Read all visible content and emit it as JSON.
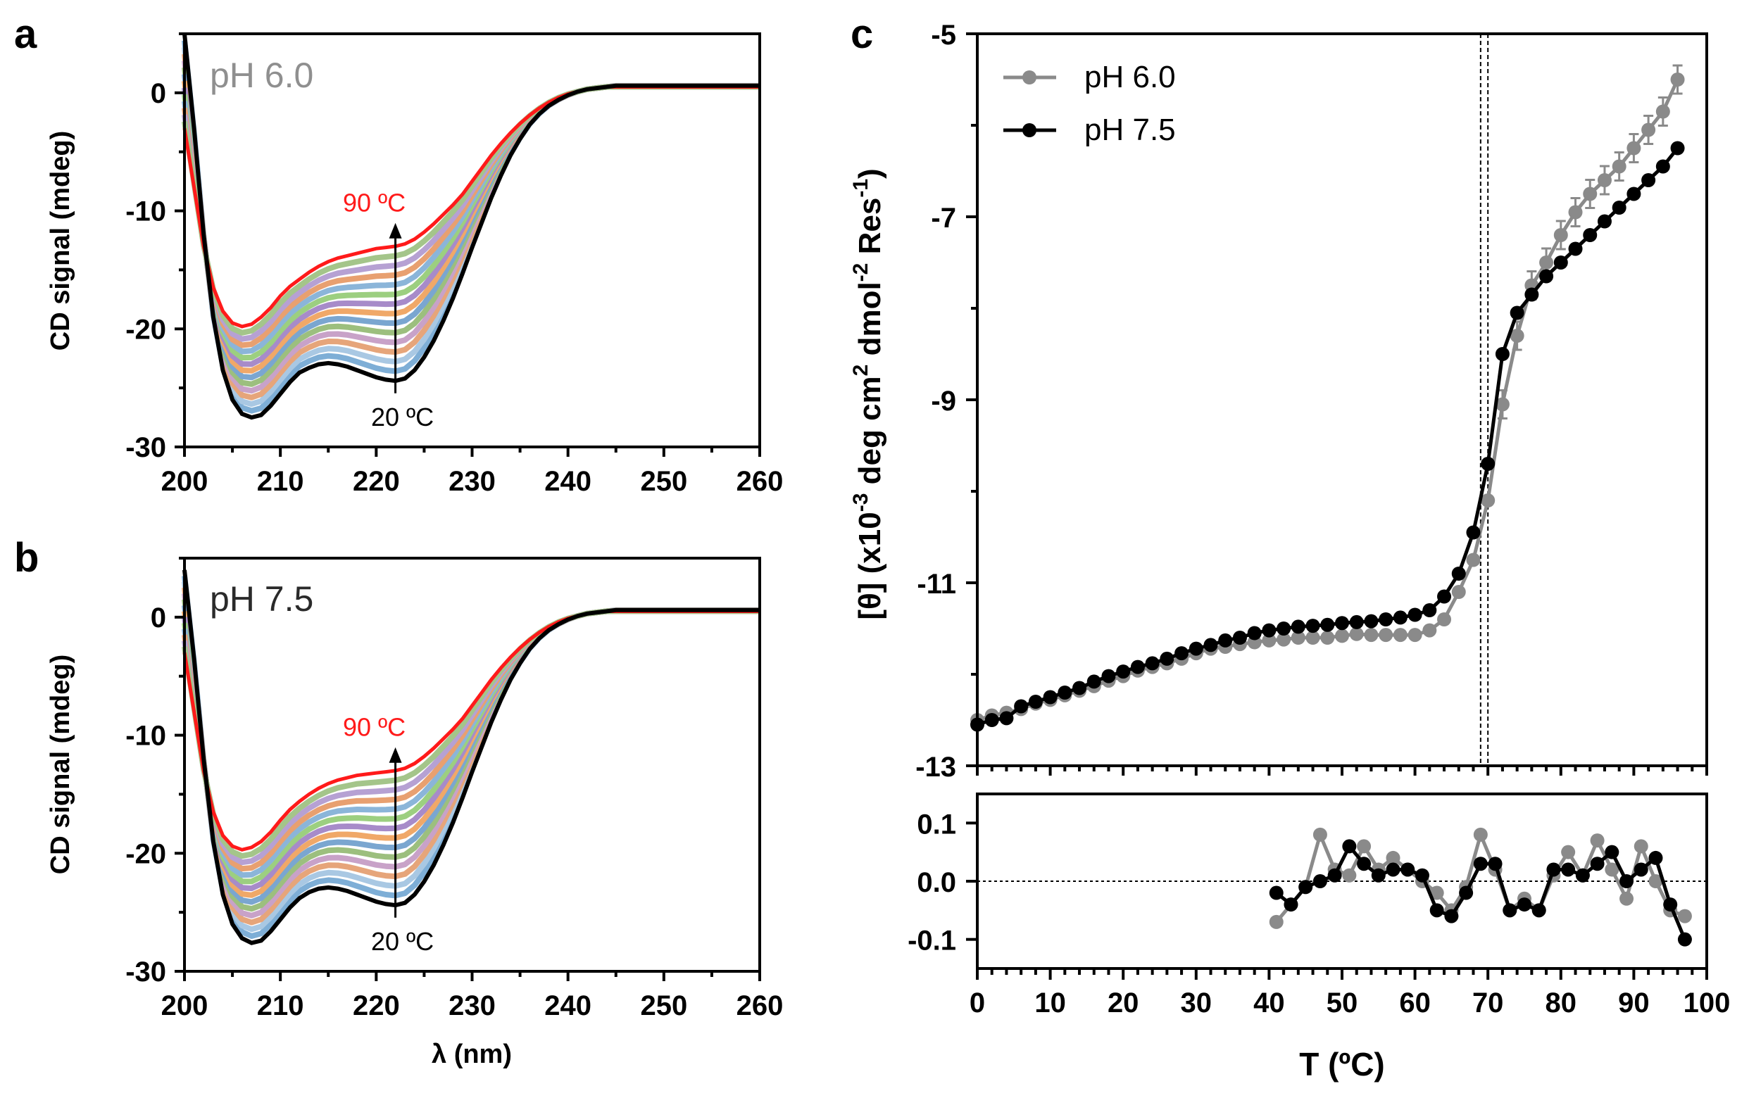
{
  "panels": {
    "a": {
      "letter": "a",
      "ph_label": "pH 6.0",
      "ph_color": "#8f8f8f"
    },
    "b": {
      "letter": "b",
      "ph_label": "pH 7.5",
      "ph_color": "#2a2a2a"
    },
    "c": {
      "letter": "c"
    }
  },
  "chart_data": [
    {
      "id": "a",
      "type": "line",
      "title": "pH 6.0",
      "xlabel": "",
      "ylabel": "CD signal (mdeg)",
      "xlim": [
        200,
        260
      ],
      "ylim": [
        -30,
        5
      ],
      "xticks": [
        "200",
        "210",
        "220",
        "230",
        "240",
        "250",
        "260"
      ],
      "yticks": [
        "0",
        "-10",
        "-20",
        "-30"
      ],
      "annotations": {
        "hot": "90 ºC",
        "cold": "20 ºC",
        "arrow_x": 222,
        "arrow_from": -24.5,
        "arrow_to": -11.5
      },
      "series_x": [
        200,
        201,
        202,
        203,
        204,
        205,
        206,
        207,
        208,
        209,
        210,
        211,
        212,
        213,
        214,
        215,
        216,
        217,
        218,
        219,
        220,
        221,
        222,
        223,
        224,
        225,
        226,
        227,
        228,
        229,
        230,
        231,
        232,
        233,
        234,
        235,
        236,
        237,
        238,
        239,
        240,
        241,
        242,
        243,
        244,
        245,
        246,
        247,
        248,
        249,
        250,
        251,
        252,
        253,
        254,
        255,
        256,
        257,
        258,
        259,
        260
      ],
      "series_cold": {
        "name": "20 ºC",
        "color": "#000000",
        "values": [
          5,
          -3,
          -12,
          -19,
          -23.5,
          -26,
          -27.2,
          -27.5,
          -27.3,
          -26.5,
          -25.5,
          -24.5,
          -23.7,
          -23.3,
          -23,
          -22.9,
          -23,
          -23.2,
          -23.5,
          -23.8,
          -24.1,
          -24.3,
          -24.4,
          -24.2,
          -23.5,
          -22.4,
          -21,
          -19.3,
          -17.4,
          -15.3,
          -13.1,
          -11,
          -8.9,
          -7,
          -5.3,
          -3.9,
          -2.7,
          -1.8,
          -1.1,
          -0.6,
          -0.2,
          0.1,
          0.3,
          0.4,
          0.5,
          0.6,
          0.6,
          0.6,
          0.6,
          0.6,
          0.6,
          0.6,
          0.6,
          0.6,
          0.6,
          0.6,
          0.6,
          0.6,
          0.6,
          0.6,
          0.6
        ]
      },
      "series_hot": {
        "name": "90 ºC",
        "color": "#ff1a1a",
        "values": [
          -3,
          -8,
          -13,
          -16.5,
          -18.5,
          -19.5,
          -19.8,
          -19.6,
          -19,
          -18.2,
          -17.2,
          -16.4,
          -15.8,
          -15.2,
          -14.7,
          -14.3,
          -14,
          -13.8,
          -13.6,
          -13.4,
          -13.2,
          -13.1,
          -13,
          -12.8,
          -12.4,
          -11.8,
          -11.1,
          -10.3,
          -9.5,
          -8.6,
          -7.5,
          -6.4,
          -5.3,
          -4.3,
          -3.4,
          -2.6,
          -1.9,
          -1.3,
          -0.8,
          -0.4,
          -0.1,
          0.1,
          0.3,
          0.4,
          0.5,
          0.5,
          0.5,
          0.5,
          0.5,
          0.5,
          0.5,
          0.5,
          0.5,
          0.5,
          0.5,
          0.5,
          0.5,
          0.5,
          0.5,
          0.5,
          0.5
        ]
      },
      "intermediate_colors": [
        "#7eaed6",
        "#a9c8e3",
        "#e6a57a",
        "#c8a2c8",
        "#9cbf7e",
        "#7aa6d0",
        "#f0a868",
        "#a78bc9",
        "#9ccf80",
        "#8bb5d9",
        "#e8a070",
        "#b6a1d3",
        "#a4c58a"
      ]
    },
    {
      "id": "b",
      "type": "line",
      "title": "pH 7.5",
      "xlabel": "λ (nm)",
      "ylabel": "CD signal (mdeg)",
      "xlim": [
        200,
        260
      ],
      "ylim": [
        -30,
        5
      ],
      "xticks": [
        "200",
        "210",
        "220",
        "230",
        "240",
        "250",
        "260"
      ],
      "yticks": [
        "0",
        "-10",
        "-20",
        "-30"
      ],
      "annotations": {
        "hot": "90 ºC",
        "cold": "20 ºC",
        "arrow_x": 222,
        "arrow_from": -24.5,
        "arrow_to": -11.5
      },
      "series_x": [
        200,
        201,
        202,
        203,
        204,
        205,
        206,
        207,
        208,
        209,
        210,
        211,
        212,
        213,
        214,
        215,
        216,
        217,
        218,
        219,
        220,
        221,
        222,
        223,
        224,
        225,
        226,
        227,
        228,
        229,
        230,
        231,
        232,
        233,
        234,
        235,
        236,
        237,
        238,
        239,
        240,
        241,
        242,
        243,
        244,
        245,
        246,
        247,
        248,
        249,
        250,
        251,
        252,
        253,
        254,
        255,
        256,
        257,
        258,
        259,
        260
      ],
      "series_cold": {
        "name": "20 ºC",
        "color": "#000000",
        "values": [
          4,
          -3.5,
          -12,
          -19,
          -23.5,
          -26,
          -27.2,
          -27.6,
          -27.4,
          -26.6,
          -25.6,
          -24.6,
          -23.8,
          -23.3,
          -23,
          -22.9,
          -23,
          -23.2,
          -23.5,
          -23.8,
          -24.1,
          -24.3,
          -24.4,
          -24.2,
          -23.5,
          -22.4,
          -21,
          -19.3,
          -17.4,
          -15.3,
          -13.1,
          -11,
          -8.9,
          -7,
          -5.3,
          -3.9,
          -2.7,
          -1.8,
          -1.1,
          -0.6,
          -0.2,
          0.1,
          0.3,
          0.4,
          0.5,
          0.6,
          0.6,
          0.6,
          0.6,
          0.6,
          0.6,
          0.6,
          0.6,
          0.6,
          0.6,
          0.6,
          0.6,
          0.6,
          0.6,
          0.6,
          0.6
        ]
      },
      "series_hot": {
        "name": "90 ºC",
        "color": "#ff1a1a",
        "values": [
          -3,
          -8,
          -13,
          -16.5,
          -18.5,
          -19.4,
          -19.7,
          -19.5,
          -19,
          -18.2,
          -17.2,
          -16.3,
          -15.6,
          -15,
          -14.5,
          -14.1,
          -13.8,
          -13.6,
          -13.4,
          -13.3,
          -13.2,
          -13.1,
          -13,
          -12.8,
          -12.4,
          -11.8,
          -11.1,
          -10.3,
          -9.5,
          -8.6,
          -7.5,
          -6.4,
          -5.3,
          -4.3,
          -3.4,
          -2.6,
          -1.9,
          -1.3,
          -0.8,
          -0.4,
          -0.1,
          0.1,
          0.3,
          0.4,
          0.5,
          0.5,
          0.5,
          0.5,
          0.5,
          0.5,
          0.5,
          0.5,
          0.5,
          0.5,
          0.5,
          0.5,
          0.5,
          0.5,
          0.5,
          0.5,
          0.5
        ]
      },
      "intermediate_colors": [
        "#7eaed6",
        "#a9c8e3",
        "#e6a57a",
        "#c8a2c8",
        "#9cbf7e",
        "#7aa6d0",
        "#f0a868",
        "#a78bc9",
        "#9ccf80",
        "#8bb5d9",
        "#e8a070",
        "#b6a1d3",
        "#a4c58a"
      ]
    },
    {
      "id": "c-main",
      "type": "line",
      "xlabel": "T (ºC)",
      "ylabel": "[θ] (x10-3 deg cm2 dmol-2 Res-1)",
      "xlim": [
        0,
        100
      ],
      "ylim": [
        -13,
        -5
      ],
      "xticks": [
        "0",
        "10",
        "20",
        "30",
        "40",
        "50",
        "60",
        "70",
        "80",
        "90",
        "100"
      ],
      "yticks": [
        "-5",
        "-7",
        "-9",
        "-11",
        "-13"
      ],
      "tm_lines": [
        69,
        70
      ],
      "legend": {
        "position": "top-left",
        "entries": [
          "pH 6.0",
          "pH 7.5"
        ]
      },
      "series": [
        {
          "name": "pH 6.0",
          "color": "#8a8a8a",
          "x": [
            0,
            2,
            4,
            6,
            8,
            10,
            12,
            14,
            16,
            18,
            20,
            22,
            24,
            26,
            28,
            30,
            32,
            34,
            36,
            38,
            40,
            42,
            44,
            46,
            48,
            50,
            52,
            54,
            56,
            58,
            60,
            62,
            64,
            66,
            68,
            70,
            72,
            74,
            76,
            78,
            80,
            82,
            84,
            86,
            88,
            90,
            92,
            94,
            96
          ],
          "y": [
            -12.5,
            -12.45,
            -12.42,
            -12.38,
            -12.32,
            -12.28,
            -12.23,
            -12.18,
            -12.13,
            -12.07,
            -12.02,
            -11.96,
            -11.92,
            -11.88,
            -11.83,
            -11.77,
            -11.72,
            -11.7,
            -11.67,
            -11.65,
            -11.63,
            -11.62,
            -11.6,
            -11.6,
            -11.6,
            -11.58,
            -11.56,
            -11.57,
            -11.57,
            -11.57,
            -11.57,
            -11.52,
            -11.4,
            -11.1,
            -10.75,
            -10.1,
            -9.05,
            -8.3,
            -7.75,
            -7.5,
            -7.2,
            -6.95,
            -6.75,
            -6.6,
            -6.45,
            -6.25,
            -6.05,
            -5.85,
            -5.5
          ],
          "error_from_x": 72
        },
        {
          "name": "pH 7.5",
          "color": "#000000",
          "x": [
            0,
            2,
            4,
            6,
            8,
            10,
            12,
            14,
            16,
            18,
            20,
            22,
            24,
            26,
            28,
            30,
            32,
            34,
            36,
            38,
            40,
            42,
            44,
            46,
            48,
            50,
            52,
            54,
            56,
            58,
            60,
            62,
            64,
            66,
            68,
            70,
            72,
            74,
            76,
            78,
            80,
            82,
            84,
            86,
            88,
            90,
            92,
            94,
            96
          ],
          "y": [
            -12.55,
            -12.5,
            -12.48,
            -12.35,
            -12.3,
            -12.25,
            -12.2,
            -12.15,
            -12.08,
            -12.02,
            -11.97,
            -11.92,
            -11.88,
            -11.83,
            -11.77,
            -11.72,
            -11.68,
            -11.63,
            -11.6,
            -11.55,
            -11.52,
            -11.5,
            -11.48,
            -11.47,
            -11.46,
            -11.44,
            -11.43,
            -11.42,
            -11.4,
            -11.38,
            -11.35,
            -11.3,
            -11.15,
            -10.9,
            -10.45,
            -9.7,
            -8.5,
            -8.05,
            -7.85,
            -7.65,
            -7.5,
            -7.35,
            -7.2,
            -7.05,
            -6.9,
            -6.75,
            -6.6,
            -6.45,
            -6.25
          ]
        }
      ]
    },
    {
      "id": "c-residuals",
      "type": "line",
      "xlim": [
        0,
        100
      ],
      "ylim": [
        -0.15,
        0.15
      ],
      "yticks": [
        "0.1",
        "0.0",
        "-0.1"
      ],
      "zero_line": true,
      "series": [
        {
          "name": "pH 6.0",
          "color": "#8a8a8a",
          "x": [
            41,
            43,
            45,
            47,
            49,
            51,
            53,
            55,
            57,
            59,
            61,
            63,
            65,
            67,
            69,
            71,
            73,
            75,
            77,
            79,
            81,
            83,
            85,
            87,
            89,
            91,
            93,
            95,
            97
          ],
          "y": [
            -0.07,
            -0.04,
            -0.01,
            0.08,
            0.02,
            0.01,
            0.06,
            0.02,
            0.04,
            0.02,
            0.0,
            -0.02,
            -0.05,
            -0.01,
            0.08,
            0.02,
            -0.05,
            -0.03,
            -0.05,
            0.01,
            0.05,
            0.01,
            0.07,
            0.02,
            -0.03,
            0.06,
            0.0,
            -0.05,
            -0.06
          ]
        },
        {
          "name": "pH 7.5",
          "color": "#000000",
          "x": [
            41,
            43,
            45,
            47,
            49,
            51,
            53,
            55,
            57,
            59,
            61,
            63,
            65,
            67,
            69,
            71,
            73,
            75,
            77,
            79,
            81,
            83,
            85,
            87,
            89,
            91,
            93,
            95,
            97
          ],
          "y": [
            -0.02,
            -0.04,
            -0.01,
            0.0,
            0.01,
            0.06,
            0.03,
            0.01,
            0.02,
            0.02,
            0.01,
            -0.05,
            -0.06,
            -0.02,
            0.03,
            0.03,
            -0.05,
            -0.04,
            -0.05,
            0.02,
            0.02,
            0.01,
            0.03,
            0.05,
            0.0,
            0.02,
            0.04,
            -0.04,
            -0.1
          ]
        }
      ]
    }
  ]
}
